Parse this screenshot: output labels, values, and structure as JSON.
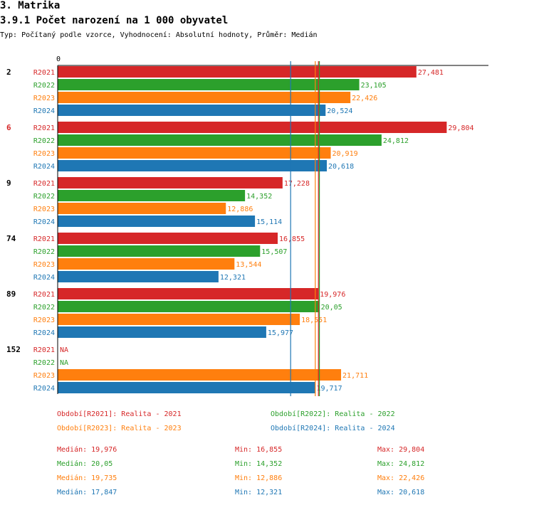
{
  "header": {
    "section": "3. Matrika",
    "title": "3.9.1 Počet narození na 1 000 obyvatel",
    "subtitle": "Typ: Počítaný podle vzorce, Vyhodnocení: Absolutní hodnoty, Průměr: Medián"
  },
  "chart_data": {
    "type": "bar",
    "orientation": "horizontal",
    "axis_zero_label": "0",
    "x_range": [
      0,
      33
    ],
    "groups": [
      "2",
      "6",
      "9",
      "74",
      "89",
      "152"
    ],
    "highlighted_group": "6",
    "series": [
      {
        "name": "R2021",
        "color": "#d62728",
        "values": [
          27.481,
          29.804,
          17.228,
          16.855,
          19.976,
          null
        ],
        "labels": [
          "27,481",
          "29,804",
          "17,228",
          "16,855",
          "19,976",
          "NA"
        ]
      },
      {
        "name": "R2022",
        "color": "#2ca02c",
        "values": [
          23.105,
          24.812,
          14.352,
          15.507,
          20.05,
          null
        ],
        "labels": [
          "23,105",
          "24,812",
          "14,352",
          "15,507",
          "20,05",
          "NA"
        ]
      },
      {
        "name": "R2023",
        "color": "#ff7f0e",
        "values": [
          22.426,
          20.919,
          12.886,
          13.544,
          18.551,
          21.711
        ],
        "labels": [
          "22,426",
          "20,919",
          "12,886",
          "13,544",
          "18,551",
          "21,711"
        ]
      },
      {
        "name": "R2024",
        "color": "#1f77b4",
        "values": [
          20.524,
          20.618,
          15.114,
          12.321,
          15.977,
          19.717
        ],
        "labels": [
          "20,524",
          "20,618",
          "15,114",
          "12,321",
          "15,977",
          "19,717"
        ]
      }
    ],
    "reference_lines": [
      {
        "series": "R2024",
        "value": 17.847,
        "color": "#1f77b4"
      },
      {
        "series": "R2023",
        "value": 19.735,
        "color": "#ff7f0e"
      },
      {
        "series": "R2021",
        "value": 19.976,
        "color": "#d62728"
      },
      {
        "series": "R2022",
        "value": 20.05,
        "color": "#2ca02c"
      }
    ],
    "legend": [
      {
        "text": "Období[R2021]: Realita - 2021",
        "color": "#d62728"
      },
      {
        "text": "Období[R2022]: Realita - 2022",
        "color": "#2ca02c"
      },
      {
        "text": "Období[R2023]: Realita - 2023",
        "color": "#ff7f0e"
      },
      {
        "text": "Období[R2024]: Realita - 2024",
        "color": "#1f77b4"
      }
    ],
    "stats": [
      {
        "median": "Medián: 19,976",
        "min": "Min: 16,855",
        "max": "Max: 29,804",
        "color": "#d62728"
      },
      {
        "median": "Medián: 20,05",
        "min": "Min: 14,352",
        "max": "Max: 24,812",
        "color": "#2ca02c"
      },
      {
        "median": "Medián: 19,735",
        "min": "Min: 12,886",
        "max": "Max: 22,426",
        "color": "#ff7f0e"
      },
      {
        "median": "Medián: 17,847",
        "min": "Min: 12,321",
        "max": "Max: 20,618",
        "color": "#1f77b4"
      }
    ]
  }
}
